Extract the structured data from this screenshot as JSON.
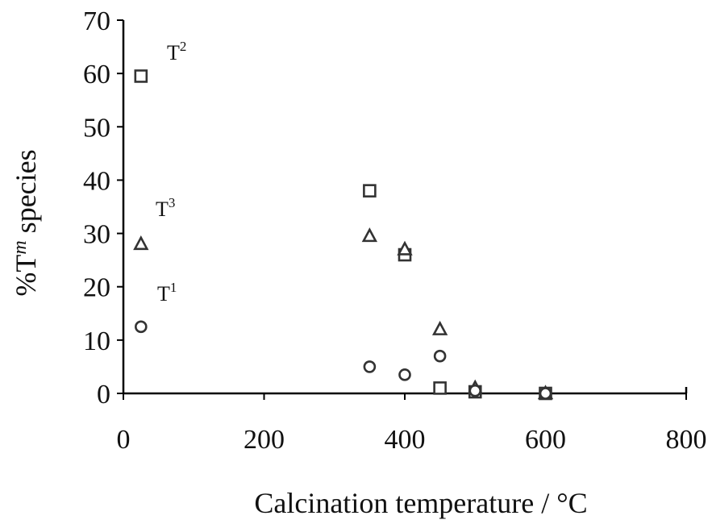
{
  "chart_data": {
    "type": "scatter",
    "title": "",
    "xlabel": "Calcination temperature / °C",
    "ylabel": {
      "prefix": "%T",
      "italic": "m",
      "suffix": " species"
    },
    "xlim": [
      0,
      800
    ],
    "ylim": [
      0,
      70
    ],
    "xticks": [
      0,
      200,
      400,
      600,
      800
    ],
    "yticks": [
      0,
      10,
      20,
      30,
      40,
      50,
      60,
      70
    ],
    "grid": false,
    "series": [
      {
        "name": {
          "base": "T",
          "sup": "2"
        },
        "marker": "square",
        "x": [
          25,
          350,
          400,
          450,
          500,
          600
        ],
        "y": [
          59.5,
          38,
          26,
          1,
          0.3,
          0
        ]
      },
      {
        "name": {
          "base": "T",
          "sup": "3"
        },
        "marker": "triangle",
        "x": [
          25,
          350,
          400,
          450,
          500,
          600
        ],
        "y": [
          28,
          29.5,
          27,
          12,
          1,
          0
        ]
      },
      {
        "name": {
          "base": "T",
          "sup": "1"
        },
        "marker": "circle",
        "x": [
          25,
          350,
          400,
          450,
          500,
          600
        ],
        "y": [
          12.5,
          5,
          3.5,
          7,
          0.5,
          0
        ]
      }
    ]
  }
}
